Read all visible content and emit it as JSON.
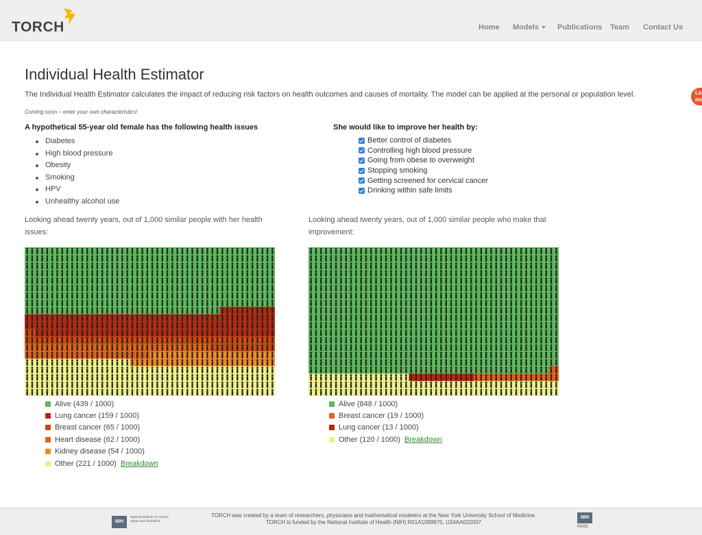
{
  "brand": {
    "name": "TORCH",
    "flame_color": "#f5b800"
  },
  "nav": {
    "home": "Home",
    "models": "Models",
    "publications": "Publications",
    "team": "Team",
    "contact": "Contact Us"
  },
  "side_badge": {
    "line1": "Lea",
    "line2": "mo",
    "color": "#e4572e"
  },
  "page": {
    "title": "Individual Health Estimator",
    "intro": "The Individual Health Estimator calculates the impact of reducing risk factors on health outcomes and causes of mortality. The model can be applied at the personal or population level.",
    "coming_soon": "Coming soon – enter your own characteristics!"
  },
  "issues": {
    "heading": "A hypothetical 55-year old female has the following health issues",
    "items": [
      "Diabetes",
      "High blood pressure",
      "Obesity",
      "Smoking",
      "HPV",
      "Unhealthy alcohol use"
    ]
  },
  "improvements": {
    "heading": "She would like to improve her health by:",
    "items": [
      {
        "label": "Better control of diabetes",
        "checked": true
      },
      {
        "label": "Controlling high blood pressure",
        "checked": true
      },
      {
        "label": "Going from obese to overweight",
        "checked": true
      },
      {
        "label": "Stopping smoking",
        "checked": true
      },
      {
        "label": "Getting screened for cervical cancer",
        "checked": true
      },
      {
        "label": "Drinking within safe limits",
        "checked": true
      }
    ]
  },
  "left_panel": {
    "caption": "Looking ahead twenty years, out of 1,000 similar people with her health issues:",
    "legend": [
      {
        "label": "Alive (439 / 1000)",
        "color": "#5cb85c"
      },
      {
        "label": "Lung cancer (159 / 1000)",
        "color": "#b22a10"
      },
      {
        "label": "Breast cancer (65 / 1000)",
        "color": "#cc4a10"
      },
      {
        "label": "Heart disease (62 / 1000)",
        "color": "#de6516"
      },
      {
        "label": "Kidney disease (54 / 1000)",
        "color": "#f08a24"
      },
      {
        "label": "Other (221 / 1000)",
        "color": "#eef08a"
      }
    ],
    "breakdown": "Breakdown"
  },
  "right_panel": {
    "caption": "Looking ahead twenty years, out of 1,000 similar people who make that improvement:",
    "legend": [
      {
        "label": "Alive (848 / 1000)",
        "color": "#5cb85c"
      },
      {
        "label": "Breast cancer (19 / 1000)",
        "color": "#e0631a"
      },
      {
        "label": "Lung cancer (13 / 1000)",
        "color": "#b22a10"
      },
      {
        "label": "Other (120 / 1000)",
        "color": "#eef08a"
      }
    ],
    "breakdown": "Breakdown"
  },
  "footer": {
    "nih_badge": "NIH",
    "nih_institute": "National Institute on Alcohol Abuse and Alcoholism",
    "line1": "TORCH was created by a team of researchers, physicians and mathematical modelers at the New York University School of Medicine.",
    "line2": "TORCH is funded by the National Institute of Health (NIH) R01A1099970, U24AA022007",
    "niaid_badge": "NIH",
    "niaid_label": "NIAID"
  },
  "chart_data": [
    {
      "type": "heatmap",
      "title": "",
      "total": 1000,
      "columns": 50,
      "rows": 20,
      "series": [
        {
          "name": "Alive",
          "value": 439,
          "color": "#5cb85c"
        },
        {
          "name": "Lung cancer",
          "value": 159,
          "color": "#b22a10"
        },
        {
          "name": "Breast cancer",
          "value": 65,
          "color": "#cc4a10"
        },
        {
          "name": "Heart disease",
          "value": 62,
          "color": "#de6516"
        },
        {
          "name": "Kidney disease",
          "value": 54,
          "color": "#f08a24"
        },
        {
          "name": "Other",
          "value": 221,
          "color": "#eef08a"
        }
      ]
    },
    {
      "type": "heatmap",
      "title": "",
      "total": 1000,
      "columns": 50,
      "rows": 20,
      "series": [
        {
          "name": "Alive",
          "value": 848,
          "color": "#5cb85c"
        },
        {
          "name": "Breast cancer",
          "value": 19,
          "color": "#e0631a"
        },
        {
          "name": "Lung cancer",
          "value": 13,
          "color": "#b22a10"
        },
        {
          "name": "Other",
          "value": 120,
          "color": "#eef08a"
        }
      ]
    }
  ]
}
